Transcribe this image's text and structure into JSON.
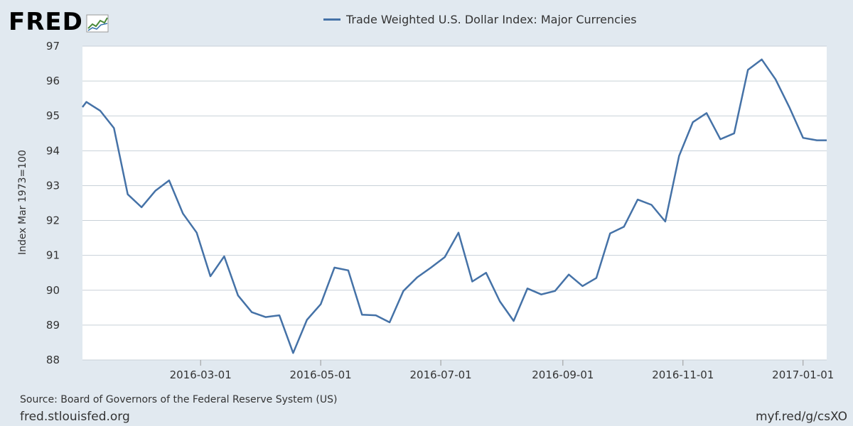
{
  "brand": {
    "logo_text": "FRED",
    "logo_icon": "fred-chart-logo-icon"
  },
  "footer": {
    "source": "Source: Board of Governors of the Federal Reserve System (US)",
    "site": "fred.stlouisfed.org",
    "shortlink": "myf.red/g/csXO"
  },
  "colors": {
    "background": "#e1e9f0",
    "plot": "#ffffff",
    "line": "#4572a7",
    "grid": "#c8d0d8"
  },
  "chart_data": {
    "type": "line",
    "title": "",
    "xlabel": "",
    "ylabel": "Index Mar 1973=100",
    "ylim": [
      88,
      97
    ],
    "xlim": [
      "2016-01-01",
      "2017-01-13"
    ],
    "yticks": [
      88,
      89,
      90,
      91,
      92,
      93,
      94,
      95,
      96,
      97
    ],
    "xticks": [
      "2016-03-01",
      "2016-05-01",
      "2016-07-01",
      "2016-09-01",
      "2016-11-01",
      "2017-01-01"
    ],
    "grid": true,
    "legend_position": "top-center",
    "series": [
      {
        "name": "Trade Weighted U.S. Dollar Index: Major Currencies",
        "x": [
          "2016-01-01",
          "2016-01-03",
          "2016-01-10",
          "2016-01-17",
          "2016-01-24",
          "2016-01-31",
          "2016-02-07",
          "2016-02-14",
          "2016-02-21",
          "2016-02-28",
          "2016-03-06",
          "2016-03-13",
          "2016-03-20",
          "2016-03-27",
          "2016-04-03",
          "2016-04-10",
          "2016-04-17",
          "2016-04-24",
          "2016-05-01",
          "2016-05-08",
          "2016-05-15",
          "2016-05-22",
          "2016-05-29",
          "2016-06-05",
          "2016-06-12",
          "2016-06-19",
          "2016-06-26",
          "2016-07-03",
          "2016-07-10",
          "2016-07-17",
          "2016-07-24",
          "2016-07-31",
          "2016-08-07",
          "2016-08-14",
          "2016-08-21",
          "2016-08-28",
          "2016-09-04",
          "2016-09-11",
          "2016-09-18",
          "2016-09-25",
          "2016-10-02",
          "2016-10-09",
          "2016-10-16",
          "2016-10-23",
          "2016-10-30",
          "2016-11-06",
          "2016-11-13",
          "2016-11-20",
          "2016-11-27",
          "2016-12-04",
          "2016-12-11",
          "2016-12-18",
          "2016-12-25",
          "2017-01-01",
          "2017-01-08",
          "2017-01-13"
        ],
        "values": [
          95.25,
          95.4,
          95.15,
          94.65,
          92.75,
          92.38,
          92.85,
          93.15,
          92.2,
          91.65,
          90.4,
          90.97,
          89.85,
          89.37,
          89.23,
          89.28,
          88.2,
          89.15,
          89.6,
          90.65,
          90.57,
          89.3,
          89.28,
          89.08,
          89.98,
          90.37,
          90.65,
          90.95,
          91.65,
          90.25,
          90.5,
          89.68,
          89.12,
          90.05,
          89.88,
          89.98,
          90.45,
          90.12,
          90.35,
          91.63,
          91.82,
          92.6,
          92.45,
          91.97,
          93.85,
          94.82,
          95.08,
          94.33,
          94.5,
          96.32,
          96.62,
          96.05,
          95.25,
          94.37,
          94.3,
          94.3
        ]
      }
    ]
  }
}
